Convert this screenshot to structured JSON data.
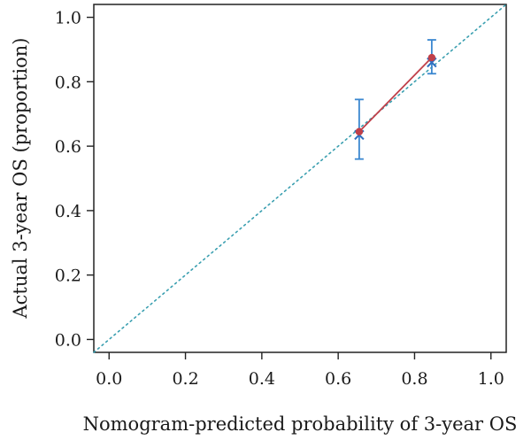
{
  "chart_data": {
    "type": "scatter",
    "title": "",
    "xlabel": "Nomogram-predicted probability of 3-year OS",
    "ylabel": "Actual 3-year OS (proportion)",
    "xlim": [
      -0.04,
      1.04
    ],
    "ylim": [
      -0.04,
      1.04
    ],
    "x_ticks": [
      0.0,
      0.2,
      0.4,
      0.6,
      0.8,
      1.0
    ],
    "x_tick_labels": [
      "0.0",
      "0.2",
      "0.4",
      "0.6",
      "0.8",
      "1.0"
    ],
    "y_ticks": [
      0.0,
      0.2,
      0.4,
      0.6,
      0.8,
      1.0
    ],
    "y_tick_labels": [
      "0.0",
      "0.2",
      "0.4",
      "0.6",
      "0.8",
      "1.0"
    ],
    "grid": false,
    "reference_line": {
      "style": "dotted",
      "from": [
        0,
        0
      ],
      "to": [
        1,
        1
      ],
      "color": "#3a9fb0"
    },
    "calibration": {
      "x": [
        0.655,
        0.845
      ],
      "observed": [
        0.645,
        0.875
      ],
      "corrected": [
        0.635,
        0.86
      ],
      "ci_lower": [
        0.56,
        0.825
      ],
      "ci_upper": [
        0.745,
        0.93
      ],
      "observed_color": "#c0404a",
      "corrected_color": "#2f6fc0",
      "ci_color": "#3a87d0"
    }
  }
}
